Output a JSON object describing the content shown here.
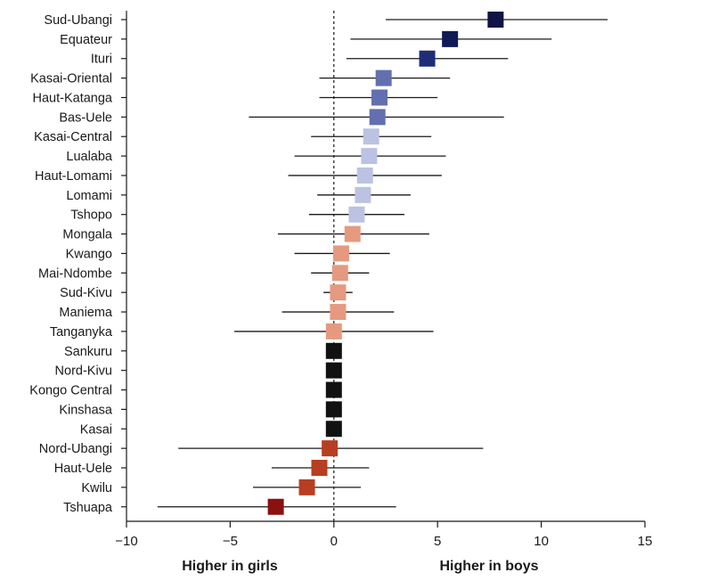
{
  "chart_data": {
    "type": "forest",
    "title": "",
    "xlabel_left": "Higher in girls",
    "xlabel_right": "Higher in boys",
    "xlim": [
      -10,
      15
    ],
    "xticks": [
      -10,
      -5,
      0,
      5,
      10,
      15
    ],
    "xtick_labels": [
      "−10",
      "−5",
      "0",
      "5",
      "10",
      "15"
    ],
    "reference_line": 0,
    "grid": false,
    "rows": [
      {
        "label": "Sud-Ubangi",
        "estimate": 7.8,
        "lower": 2.5,
        "upper": 13.2,
        "color": "#0f1445"
      },
      {
        "label": "Equateur",
        "estimate": 5.6,
        "lower": 0.8,
        "upper": 10.5,
        "color": "#0f1a55"
      },
      {
        "label": "Ituri",
        "estimate": 4.5,
        "lower": 0.6,
        "upper": 8.4,
        "color": "#1e2d75"
      },
      {
        "label": "Kasai-Oriental",
        "estimate": 2.4,
        "lower": -0.7,
        "upper": 5.6,
        "color": "#6270b0"
      },
      {
        "label": "Haut-Katanga",
        "estimate": 2.2,
        "lower": -0.7,
        "upper": 5.0,
        "color": "#6270b0"
      },
      {
        "label": "Bas-Uele",
        "estimate": 2.1,
        "lower": -4.1,
        "upper": 8.2,
        "color": "#6270b0"
      },
      {
        "label": "Kasai-Central",
        "estimate": 1.8,
        "lower": -1.1,
        "upper": 4.7,
        "color": "#bcc2e2"
      },
      {
        "label": "Lualaba",
        "estimate": 1.7,
        "lower": -1.9,
        "upper": 5.4,
        "color": "#bcc2e2"
      },
      {
        "label": "Haut-Lomami",
        "estimate": 1.5,
        "lower": -2.2,
        "upper": 5.2,
        "color": "#bcc2e2"
      },
      {
        "label": "Lomami",
        "estimate": 1.4,
        "lower": -0.8,
        "upper": 3.7,
        "color": "#bcc2e2"
      },
      {
        "label": "Tshopo",
        "estimate": 1.1,
        "lower": -1.2,
        "upper": 3.4,
        "color": "#bcc2e2"
      },
      {
        "label": "Mongala",
        "estimate": 0.9,
        "lower": -2.7,
        "upper": 4.6,
        "color": "#e59a80"
      },
      {
        "label": "Kwango",
        "estimate": 0.35,
        "lower": -1.9,
        "upper": 2.7,
        "color": "#e59a80"
      },
      {
        "label": "Mai-Ndombe",
        "estimate": 0.3,
        "lower": -1.1,
        "upper": 1.7,
        "color": "#e59a80"
      },
      {
        "label": "Sud-Kivu",
        "estimate": 0.2,
        "lower": -0.5,
        "upper": 0.9,
        "color": "#e59a80"
      },
      {
        "label": "Maniema",
        "estimate": 0.2,
        "lower": -2.5,
        "upper": 2.9,
        "color": "#e59a80"
      },
      {
        "label": "Tanganyka",
        "estimate": 0.0,
        "lower": -4.8,
        "upper": 4.8,
        "color": "#e59a80"
      },
      {
        "label": "Sankuru",
        "estimate": 0.0,
        "lower": 0.0,
        "upper": 0.0,
        "color": "#111111"
      },
      {
        "label": "Nord-Kivu",
        "estimate": 0.0,
        "lower": 0.0,
        "upper": 0.0,
        "color": "#111111"
      },
      {
        "label": "Kongo Central",
        "estimate": 0.0,
        "lower": 0.0,
        "upper": 0.0,
        "color": "#111111"
      },
      {
        "label": "Kinshasa",
        "estimate": 0.0,
        "lower": 0.0,
        "upper": 0.0,
        "color": "#111111"
      },
      {
        "label": "Kasai",
        "estimate": 0.0,
        "lower": 0.0,
        "upper": 0.0,
        "color": "#111111"
      },
      {
        "label": "Nord-Ubangi",
        "estimate": -0.2,
        "lower": -7.5,
        "upper": 7.2,
        "color": "#b83e22"
      },
      {
        "label": "Haut-Uele",
        "estimate": -0.7,
        "lower": -3.0,
        "upper": 1.7,
        "color": "#b83e22"
      },
      {
        "label": "Kwilu",
        "estimate": -1.3,
        "lower": -3.9,
        "upper": 1.3,
        "color": "#b83e22"
      },
      {
        "label": "Tshuapa",
        "estimate": -2.8,
        "lower": -8.5,
        "upper": 3.0,
        "color": "#8b1010"
      }
    ]
  }
}
